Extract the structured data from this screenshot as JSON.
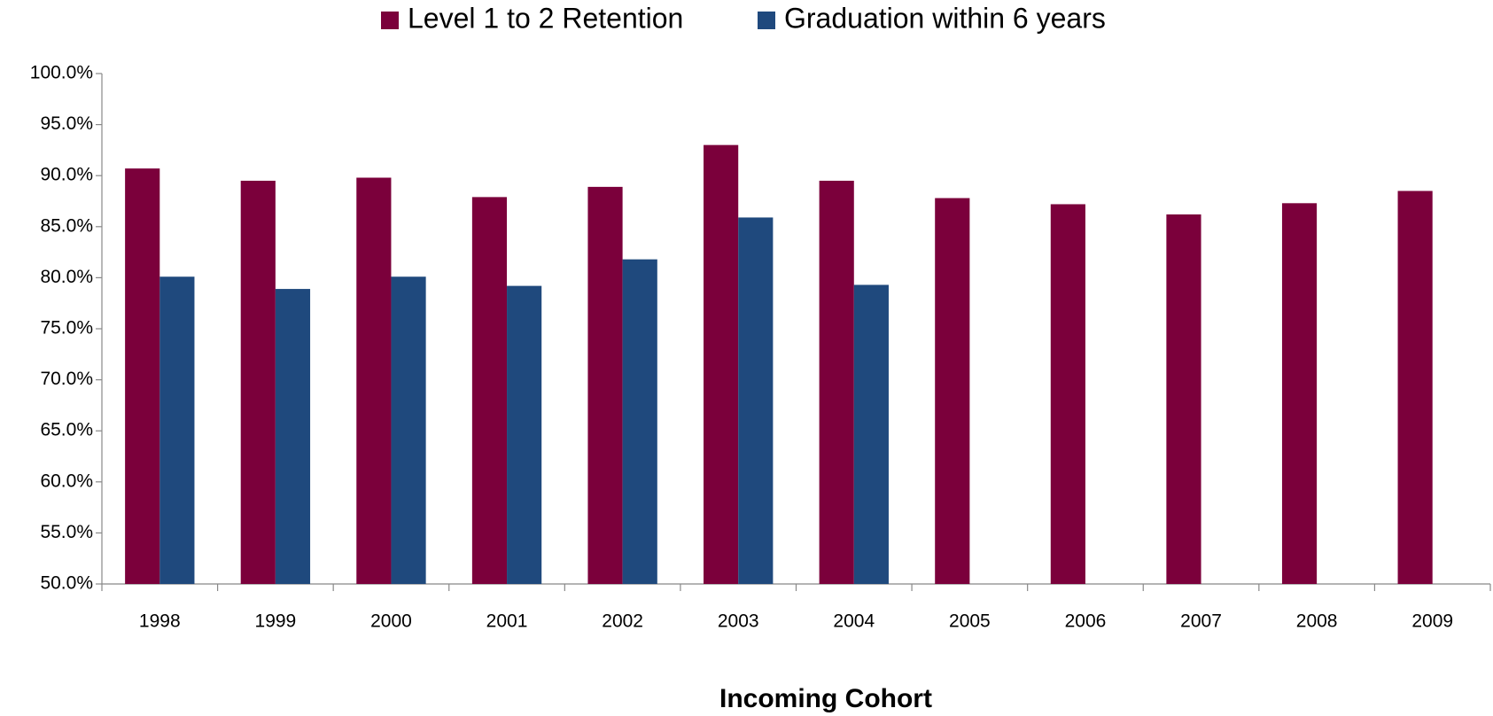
{
  "chart_data": {
    "type": "bar",
    "x_label": "Incoming Cohort",
    "categories": [
      "1998",
      "1999",
      "2000",
      "2001",
      "2002",
      "2003",
      "2004",
      "2005",
      "2006",
      "2007",
      "2008",
      "2009"
    ],
    "series": [
      {
        "name": "Level 1 to 2 Retention",
        "color": "#7b003b",
        "values": [
          90.7,
          89.5,
          89.8,
          87.9,
          88.9,
          93.0,
          89.5,
          87.8,
          87.2,
          86.2,
          87.3,
          88.5
        ]
      },
      {
        "name": "Graduation within 6 years",
        "color": "#1f497d",
        "values": [
          80.1,
          78.9,
          80.1,
          79.2,
          81.8,
          85.9,
          79.3,
          null,
          null,
          null,
          null,
          null
        ]
      }
    ],
    "ylim": [
      50,
      100
    ],
    "yticks": [
      {
        "value": 50,
        "label": "50.0%"
      },
      {
        "value": 55,
        "label": "55.0%"
      },
      {
        "value": 60,
        "label": "60.0%"
      },
      {
        "value": 65,
        "label": "65.0%"
      },
      {
        "value": 70,
        "label": "70.0%"
      },
      {
        "value": 75,
        "label": "75.0%"
      },
      {
        "value": 80,
        "label": "80.0%"
      },
      {
        "value": 85,
        "label": "85.0%"
      },
      {
        "value": 90,
        "label": "90.0%"
      },
      {
        "value": 95,
        "label": "95.0%"
      },
      {
        "value": 100,
        "label": "100.0%"
      }
    ],
    "grid": false,
    "legend": "top"
  }
}
